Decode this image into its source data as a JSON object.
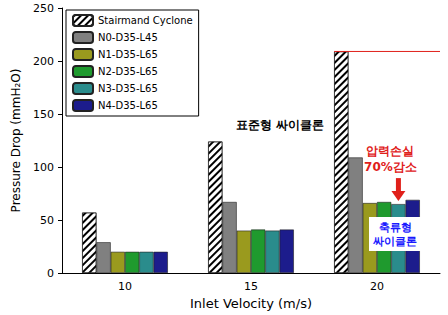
{
  "chart_data": {
    "type": "bar",
    "x_label": "Inlet Velocity (m/s)",
    "y_label": "Pressure Drop (mmH₂O)",
    "categories": [
      "10",
      "15",
      "20"
    ],
    "series": [
      {
        "name": "Stairmand Cyclone",
        "color": "#ffffff",
        "marker": "hatch",
        "values": [
          57,
          124,
          209
        ]
      },
      {
        "name": "N0-D35-L45",
        "color": "#808080",
        "values": [
          29,
          67,
          109
        ]
      },
      {
        "name": "N1-D35-L65",
        "color": "#9a9a1e",
        "values": [
          20,
          40,
          66
        ]
      },
      {
        "name": "N2-D35-L65",
        "color": "#1f9a2e",
        "values": [
          20,
          41,
          67
        ]
      },
      {
        "name": "N3-D35-L65",
        "color": "#2a8c8c",
        "values": [
          20,
          40,
          65
        ]
      },
      {
        "name": "N4-D35-L65",
        "color": "#1c1c8c",
        "values": [
          20,
          41,
          69
        ]
      }
    ],
    "ylim": [
      0,
      250
    ],
    "yticks": [
      0,
      50,
      100,
      150,
      200,
      250
    ],
    "grid": false,
    "legend": "upper left",
    "annotations": [
      "표준형 싸이클론",
      "압력손실\n70%감소",
      "축류형\n싸이클론"
    ]
  }
}
